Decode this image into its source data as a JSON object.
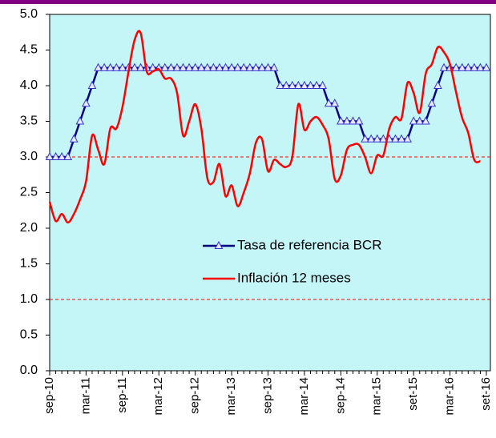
{
  "chart_data": {
    "type": "line",
    "categories": [
      "sep-10",
      null,
      null,
      null,
      null,
      null,
      "mar-11",
      null,
      null,
      null,
      null,
      null,
      "sep-11",
      null,
      null,
      null,
      null,
      null,
      "mar-12",
      null,
      null,
      null,
      null,
      null,
      "sep-12",
      null,
      null,
      null,
      null,
      null,
      "mar-13",
      null,
      null,
      null,
      null,
      null,
      "sep-13",
      null,
      null,
      null,
      null,
      null,
      "mar-14",
      null,
      null,
      null,
      null,
      null,
      "sep-14",
      null,
      null,
      null,
      null,
      null,
      "mar-15",
      null,
      null,
      null,
      null,
      null,
      "set-15",
      null,
      null,
      null,
      null,
      null,
      "mar-16",
      null,
      null,
      null,
      null,
      null,
      "set-16"
    ],
    "series": [
      {
        "name": "Tasa de referencia BCR",
        "color": "#000080",
        "marker": "triangle",
        "smooth": false,
        "values": [
          3,
          3,
          3,
          3,
          3.25,
          3.5,
          3.75,
          4,
          4.25,
          4.25,
          4.25,
          4.25,
          4.25,
          4.25,
          4.25,
          4.25,
          4.25,
          4.25,
          4.25,
          4.25,
          4.25,
          4.25,
          4.25,
          4.25,
          4.25,
          4.25,
          4.25,
          4.25,
          4.25,
          4.25,
          4.25,
          4.25,
          4.25,
          4.25,
          4.25,
          4.25,
          4.25,
          4.25,
          4,
          4,
          4,
          4,
          4,
          4,
          4,
          4,
          3.75,
          3.75,
          3.5,
          3.5,
          3.5,
          3.5,
          3.25,
          3.25,
          3.25,
          3.25,
          3.25,
          3.25,
          3.25,
          3.25,
          3.5,
          3.5,
          3.5,
          3.75,
          4,
          4.25,
          4.25,
          4.25,
          4.25,
          4.25,
          4.25,
          4.25,
          4.25
        ]
      },
      {
        "name": "Inflación 12 meses",
        "color": "#ff0000",
        "marker": "none",
        "smooth": true,
        "values": [
          2.37,
          2.1,
          2.2,
          2.08,
          2.2,
          2.4,
          2.66,
          3.3,
          3.1,
          2.9,
          3.4,
          3.4,
          3.7,
          4.2,
          4.64,
          4.74,
          4.2,
          4.2,
          4.23,
          4.1,
          4.1,
          3.9,
          3.3,
          3.5,
          3.74,
          3.4,
          2.7,
          2.65,
          2.9,
          2.45,
          2.6,
          2.31,
          2.5,
          2.77,
          3.2,
          3.25,
          2.8,
          2.96,
          2.9,
          2.86,
          3.0,
          3.74,
          3.38,
          3.5,
          3.56,
          3.45,
          3.25,
          2.69,
          2.74,
          3.1,
          3.17,
          3.17,
          3.0,
          2.77,
          3.02,
          3.02,
          3.4,
          3.56,
          3.54,
          4.04,
          3.9,
          3.62,
          4.17,
          4.3,
          4.54,
          4.47,
          4.3,
          3.91,
          3.55,
          3.34,
          2.96,
          2.94,
          null
        ]
      }
    ],
    "reference_lines": [
      3,
      1
    ],
    "reference_color": "#ff0000",
    "ylim": [
      0,
      5
    ],
    "yticks": [
      {
        "value": 0,
        "label": "0.0"
      },
      0.5,
      {
        "value": 1,
        "label": "1.0"
      },
      1.5,
      {
        "value": 2,
        "label": "2.0"
      },
      2.5,
      {
        "value": 3,
        "label": "3.0"
      },
      3.5,
      {
        "value": 4,
        "label": "4.0"
      },
      4.5,
      {
        "value": 5,
        "label": "5.0"
      }
    ],
    "plot_background": "#c4f6f8",
    "legend": "center"
  }
}
